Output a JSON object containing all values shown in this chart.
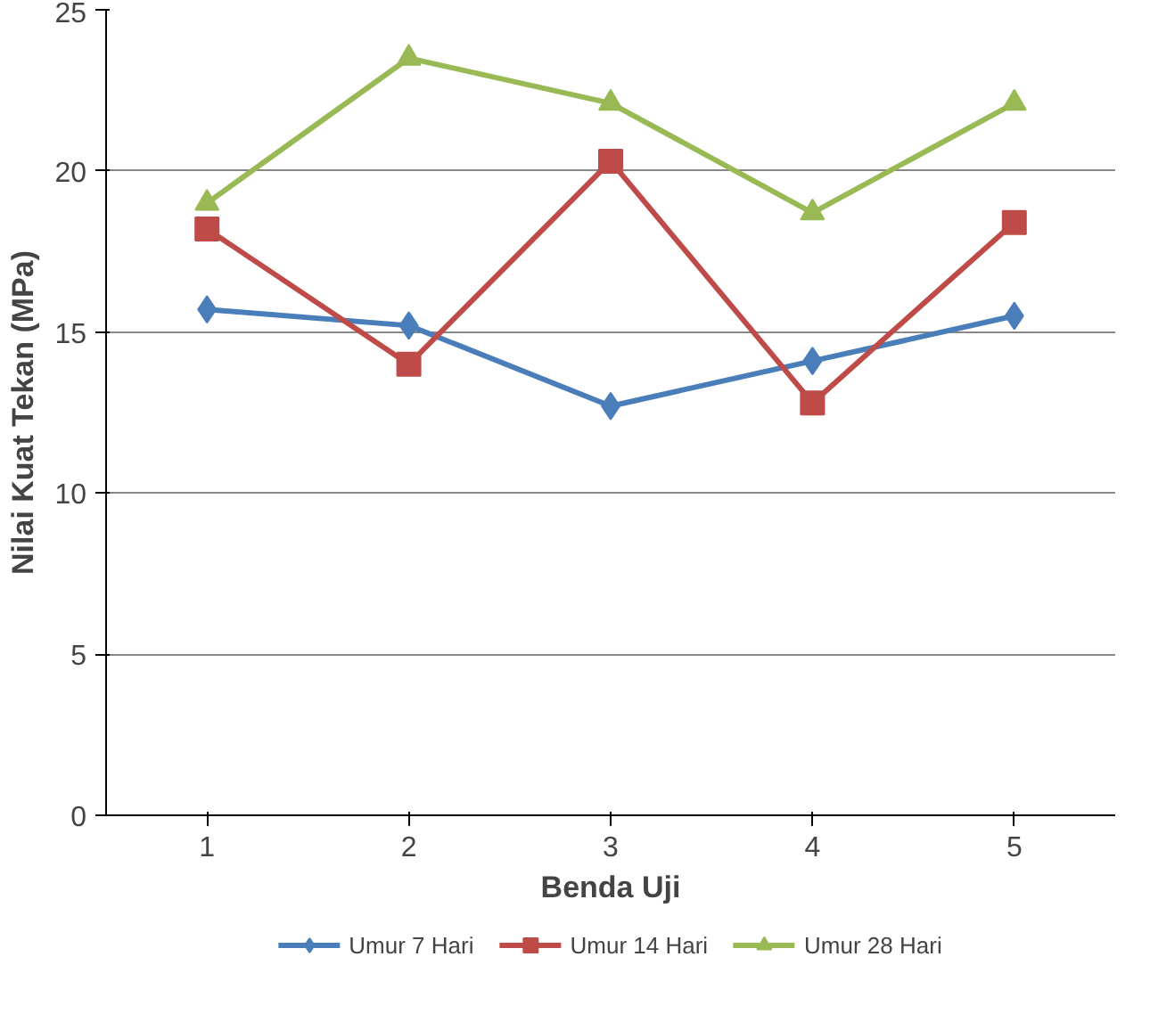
{
  "chart_data": {
    "type": "line",
    "xlabel": "Benda Uji",
    "ylabel": "Nilai Kuat Tekan (MPa)",
    "categories": [
      "1",
      "2",
      "3",
      "4",
      "5"
    ],
    "ylim": [
      0,
      25
    ],
    "yticks": [
      0,
      5,
      10,
      15,
      20,
      25
    ],
    "grid": "y",
    "legend": "bottom",
    "line_style": "solid",
    "series": [
      {
        "name": "Umur 7 Hari",
        "color": "#4a7ebb",
        "marker": "diamond",
        "values": [
          15.7,
          15.2,
          12.7,
          14.1,
          15.5
        ]
      },
      {
        "name": "Umur 14 Hari",
        "color": "#be4b48",
        "marker": "square",
        "values": [
          18.2,
          14.0,
          20.3,
          12.8,
          18.4
        ]
      },
      {
        "name": "Umur 28 Hari",
        "color": "#98b954",
        "marker": "triangle",
        "values": [
          19.0,
          23.5,
          22.1,
          18.7,
          22.1
        ]
      }
    ]
  }
}
